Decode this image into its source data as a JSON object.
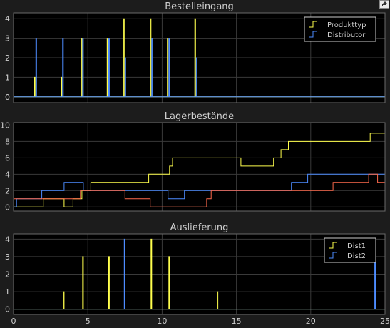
{
  "colors": {
    "background": "#1c1c1c",
    "axes": "#000000",
    "grid": "#3a3a3a",
    "text": "#d0d0d0",
    "title": "#cfcfcf"
  },
  "icons": {
    "undock": "undock-icon"
  },
  "chart_data": [
    {
      "type": "line",
      "title": "Bestelleingang",
      "xlim": [
        0,
        25
      ],
      "ylim": [
        -0.3,
        4.3
      ],
      "yticks": [
        0,
        1,
        2,
        3,
        4
      ],
      "xticks": [
        0,
        5,
        10,
        15,
        20,
        25
      ],
      "show_xticklabels": false,
      "grid": true,
      "legend_position": "top-right",
      "series": [
        {
          "name": "Produkttyp",
          "color": "#ffff4d",
          "x": [
            0,
            1.4,
            1.4,
            1.45,
            1.45,
            3.2,
            3.2,
            3.25,
            3.25,
            4.55,
            4.55,
            4.6,
            4.6,
            6.3,
            6.3,
            6.35,
            6.35,
            7.4,
            7.4,
            7.45,
            7.45,
            9.2,
            9.2,
            9.25,
            9.25,
            10.35,
            10.35,
            10.4,
            10.4,
            12.2,
            12.2,
            12.25,
            12.25,
            25
          ],
          "y": [
            0,
            0,
            1,
            1,
            0,
            0,
            1,
            1,
            0,
            0,
            3,
            3,
            0,
            0,
            3,
            3,
            0,
            0,
            4,
            4,
            0,
            0,
            4,
            4,
            0,
            0,
            3,
            3,
            0,
            0,
            4,
            4,
            0,
            0
          ]
        },
        {
          "name": "Distributor",
          "color": "#4d8cff",
          "x": [
            0,
            1.5,
            1.5,
            1.55,
            1.55,
            3.3,
            3.3,
            3.35,
            3.35,
            4.65,
            4.65,
            4.7,
            4.7,
            6.4,
            6.4,
            6.45,
            6.45,
            7.5,
            7.5,
            7.55,
            7.55,
            9.3,
            9.3,
            9.35,
            9.35,
            10.45,
            10.45,
            10.5,
            10.5,
            12.3,
            12.3,
            12.35,
            12.35,
            25
          ],
          "y": [
            0,
            0,
            3,
            3,
            0,
            0,
            3,
            3,
            0,
            0,
            3,
            3,
            0,
            0,
            3,
            3,
            0,
            0,
            2,
            2,
            0,
            0,
            3,
            3,
            0,
            0,
            3,
            3,
            0,
            0,
            2,
            2,
            0,
            0
          ]
        }
      ]
    },
    {
      "type": "line",
      "title": "Lagerbestände",
      "xlim": [
        0,
        25
      ],
      "ylim": [
        -0.5,
        10.3
      ],
      "yticks": [
        0,
        2,
        4,
        6,
        8,
        10
      ],
      "xticks": [
        0,
        5,
        10,
        15,
        20,
        25
      ],
      "show_xticklabels": false,
      "grid": true,
      "series": [
        {
          "color": "#ffff4d",
          "x": [
            0,
            2,
            2,
            3.4,
            3.4,
            4,
            4,
            4.6,
            4.6,
            5.2,
            5.2,
            5.7,
            5.7,
            9.1,
            9.1,
            10.5,
            10.5,
            10.7,
            10.7,
            13.3,
            13.3,
            15.3,
            15.3,
            17.5,
            17.5,
            18,
            18,
            18.5,
            18.5,
            21.6,
            21.6,
            24,
            24,
            25
          ],
          "y": [
            0,
            0,
            1,
            1,
            0,
            0,
            1,
            1,
            2,
            2,
            3,
            3,
            3,
            3,
            4,
            4,
            5,
            5,
            6,
            6,
            6,
            6,
            5,
            5,
            6,
            6,
            7,
            7,
            8,
            8,
            8,
            8,
            9,
            9
          ]
        },
        {
          "color": "#4d8cff",
          "x": [
            0,
            0.2,
            0.2,
            1.9,
            1.9,
            3.4,
            3.4,
            4.7,
            4.7,
            5.5,
            5.5,
            6,
            6,
            7.5,
            7.5,
            10.4,
            10.4,
            11.5,
            11.5,
            14.5,
            14.5,
            18.7,
            18.7,
            19.8,
            19.8,
            25
          ],
          "y": [
            0,
            0,
            1,
            1,
            2,
            2,
            3,
            3,
            2,
            2,
            2,
            2,
            2,
            2,
            2,
            2,
            1,
            1,
            2,
            2,
            2,
            2,
            3,
            3,
            4,
            4
          ]
        },
        {
          "color": "#ff6a4d",
          "x": [
            0,
            1.9,
            1.9,
            4.5,
            4.5,
            6.2,
            6.2,
            7.5,
            7.5,
            9.2,
            9.2,
            13,
            13,
            13.3,
            13.3,
            15.4,
            15.4,
            21.5,
            21.5,
            23.9,
            23.9,
            24.5,
            24.5,
            25
          ],
          "y": [
            1,
            1,
            1,
            1,
            2,
            2,
            2,
            2,
            1,
            1,
            0,
            0,
            1,
            1,
            2,
            2,
            2,
            2,
            3,
            3,
            4,
            4,
            3,
            3
          ]
        }
      ]
    },
    {
      "type": "line",
      "title": "Auslieferung",
      "xlim": [
        0,
        25
      ],
      "ylim": [
        -0.3,
        4.3
      ],
      "yticks": [
        0,
        1,
        2,
        3,
        4
      ],
      "xticks": [
        0,
        5,
        10,
        15,
        20,
        25
      ],
      "show_xticklabels": true,
      "grid": true,
      "legend_position": "top-right",
      "series": [
        {
          "name": "Dist1",
          "color": "#ffff4d",
          "x": [
            0,
            3.35,
            3.35,
            3.4,
            3.4,
            4.65,
            4.65,
            4.7,
            4.7,
            6.4,
            6.4,
            6.45,
            6.45,
            9.25,
            9.25,
            9.3,
            9.3,
            10.45,
            10.45,
            10.5,
            10.5,
            13.7,
            13.7,
            13.75,
            13.75,
            25
          ],
          "y": [
            0,
            0,
            1,
            1,
            0,
            0,
            3,
            3,
            0,
            0,
            3,
            3,
            0,
            0,
            4,
            4,
            0,
            0,
            3,
            3,
            0,
            0,
            1,
            1,
            0,
            0
          ]
        },
        {
          "name": "Dist2",
          "color": "#4d8cff",
          "x": [
            0,
            7.45,
            7.45,
            7.5,
            7.5,
            24.3,
            24.3,
            24.35,
            24.35,
            25
          ],
          "y": [
            0,
            0,
            4,
            4,
            0,
            0,
            4,
            4,
            0,
            0
          ]
        }
      ]
    }
  ]
}
